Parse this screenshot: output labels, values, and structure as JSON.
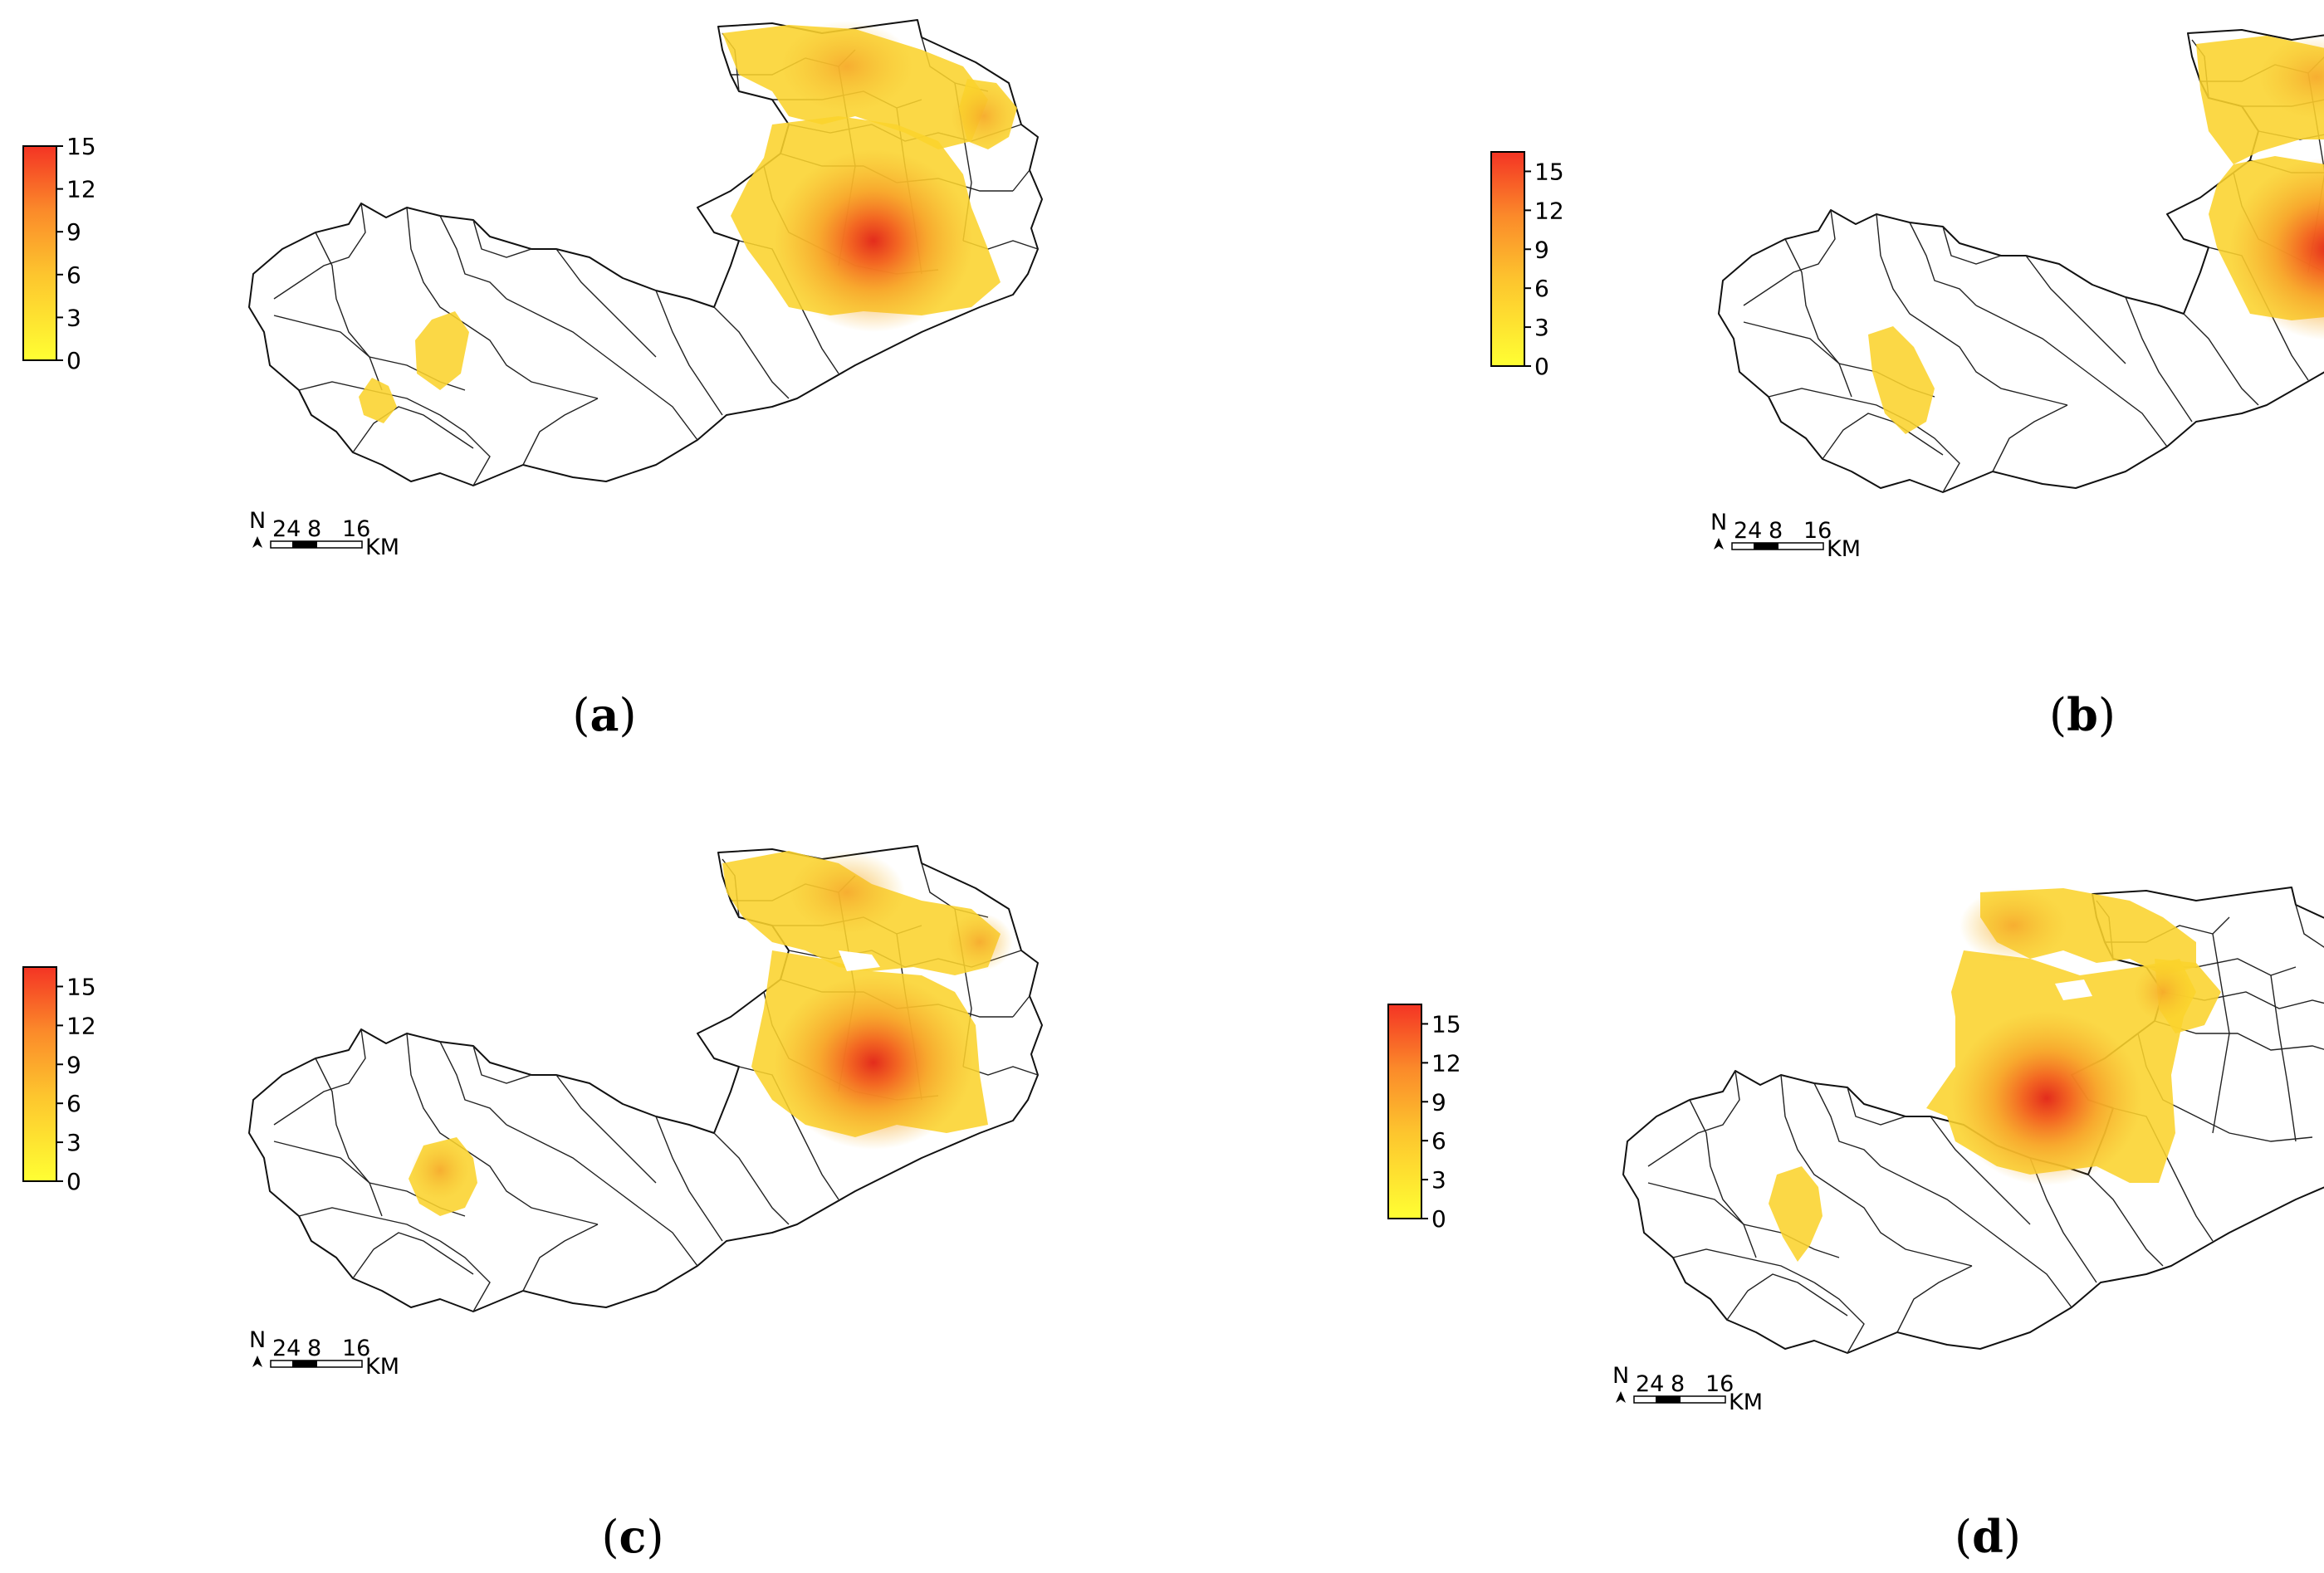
{
  "panels": [
    {
      "id": "a",
      "label": "(a)",
      "label_letter": "a",
      "colorbar": {
        "ticks": [
          "0",
          "3",
          "6",
          "9",
          "12",
          "15"
        ],
        "max": 15
      },
      "scale": {
        "north": "N",
        "labels": [
          "24",
          "8",
          "16"
        ],
        "unit": "KM"
      }
    },
    {
      "id": "b",
      "label": "(b)",
      "label_letter": "b",
      "colorbar": {
        "ticks": [
          "0",
          "3",
          "6",
          "9",
          "12",
          "15"
        ],
        "max": 16.5
      },
      "scale": {
        "north": "N",
        "labels": [
          "24",
          "8",
          "16"
        ],
        "unit": "KM"
      }
    },
    {
      "id": "c",
      "label": "(c)",
      "label_letter": "c",
      "colorbar": {
        "ticks": [
          "0",
          "3",
          "6",
          "9",
          "12",
          "15"
        ],
        "max": 16.5
      },
      "scale": {
        "north": "N",
        "labels": [
          "24",
          "8",
          "16"
        ],
        "unit": "KM"
      }
    },
    {
      "id": "d",
      "label": "(d)",
      "label_letter": "d",
      "colorbar": {
        "ticks": [
          "0",
          "3",
          "6",
          "9",
          "12",
          "15"
        ],
        "max": 16.5
      },
      "scale": {
        "north": "N",
        "labels": [
          "24",
          "8",
          "16"
        ],
        "unit": "KM"
      }
    }
  ],
  "colors": {
    "low": "#ffff33",
    "high": "#ff3322",
    "outline": "#000000"
  }
}
